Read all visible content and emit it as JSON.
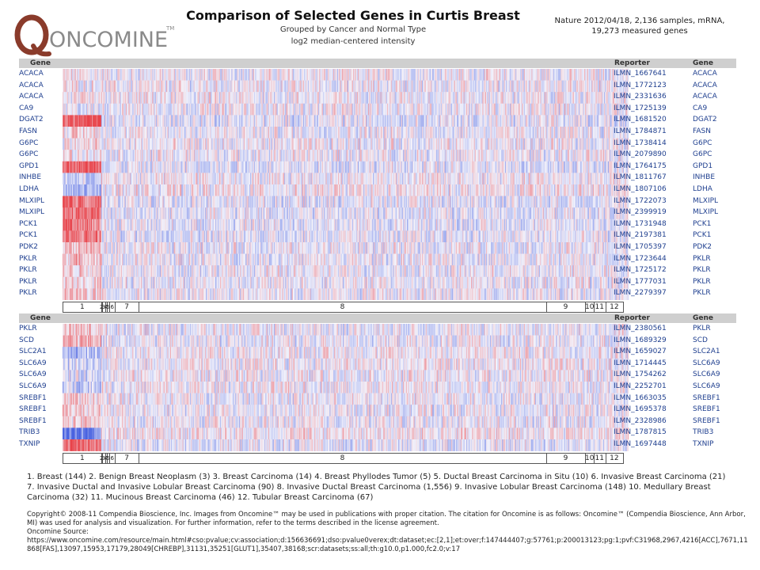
{
  "logo": {
    "brand": "ONCOMINE",
    "trademark": "TM"
  },
  "header": {
    "title": "Comparison of Selected Genes in Curtis Breast",
    "subtitle1": "Grouped by Cancer and Normal Type",
    "subtitle2": "log2 median-centered intensity",
    "source_line1": "Nature 2012/04/18,  2,136  samples, mRNA,",
    "source_line2": "19,273  measured genes"
  },
  "colors": {
    "high": "#e8434a",
    "low": "#4a63e0",
    "mid": "#f2f2fb",
    "header_bg": "#cfcfcf",
    "label": "#1f3f8f"
  },
  "chart_data": {
    "type": "heatmap",
    "column_headers": {
      "gene": "Gene",
      "reporter": "Reporter"
    },
    "groups": [
      {
        "id": "1",
        "name": "Breast",
        "n": 144
      },
      {
        "id": "2",
        "name": "Benign Breast Neoplasm",
        "n": 3
      },
      {
        "id": "3",
        "name": "Breast Carcinoma",
        "n": 14
      },
      {
        "id": "4",
        "name": "Breast Phyllodes Tumor",
        "n": 5
      },
      {
        "id": "5",
        "name": "Ductal Breast Carcinoma in Situ",
        "n": 10
      },
      {
        "id": "6",
        "name": "Invasive Breast Carcinoma",
        "n": 21
      },
      {
        "id": "7",
        "name": "Invasive Ductal and Invasive Lobular Breast Carcinoma",
        "n": 90
      },
      {
        "id": "8",
        "name": "Invasive Ductal Breast Carcinoma",
        "n": 1556
      },
      {
        "id": "9",
        "name": "Invasive Lobular Breast Carcinoma",
        "n": 148
      },
      {
        "id": "10",
        "name": "Medullary Breast Carcinoma",
        "n": 32
      },
      {
        "id": "11",
        "name": "Mucinous Breast Carcinoma",
        "n": 46
      },
      {
        "id": "12",
        "name": "Tubular Breast Carcinoma",
        "n": 67
      }
    ],
    "group_bar_labels": [
      "1",
      "2",
      "3",
      "4",
      "5",
      "6",
      "7",
      "8",
      "9",
      "10",
      "11",
      "12"
    ],
    "panels": [
      {
        "rows": [
          {
            "gene": "ACACA",
            "reporter": "ILMN_1667641",
            "normal_bias": 0.05
          },
          {
            "gene": "ACACA",
            "reporter": "ILMN_1772123",
            "normal_bias": 0.05
          },
          {
            "gene": "ACACA",
            "reporter": "ILMN_2331636",
            "normal_bias": 0.0
          },
          {
            "gene": "CA9",
            "reporter": "ILMN_1725139",
            "normal_bias": -0.1
          },
          {
            "gene": "DGAT2",
            "reporter": "ILMN_1681520",
            "normal_bias": 0.85
          },
          {
            "gene": "FASN",
            "reporter": "ILMN_1784871",
            "normal_bias": 0.15
          },
          {
            "gene": "G6PC",
            "reporter": "ILMN_1738414",
            "normal_bias": 0.1
          },
          {
            "gene": "G6PC",
            "reporter": "ILMN_2079890",
            "normal_bias": 0.1
          },
          {
            "gene": "GPD1",
            "reporter": "ILMN_1764175",
            "normal_bias": 0.9
          },
          {
            "gene": "INHBE",
            "reporter": "ILMN_1811767",
            "normal_bias": -0.25
          },
          {
            "gene": "LDHA",
            "reporter": "ILMN_1807106",
            "normal_bias": -0.45
          },
          {
            "gene": "MLXIPL",
            "reporter": "ILMN_1722073",
            "normal_bias": 0.75
          },
          {
            "gene": "MLXIPL",
            "reporter": "ILMN_2399919",
            "normal_bias": 0.75
          },
          {
            "gene": "PCK1",
            "reporter": "ILMN_1731948",
            "normal_bias": 0.7
          },
          {
            "gene": "PCK1",
            "reporter": "ILMN_2197381",
            "normal_bias": 0.65
          },
          {
            "gene": "PDK2",
            "reporter": "ILMN_1705397",
            "normal_bias": 0.3
          },
          {
            "gene": "PKLR",
            "reporter": "ILMN_1723644",
            "normal_bias": 0.3
          },
          {
            "gene": "PKLR",
            "reporter": "ILMN_1725172",
            "normal_bias": 0.2
          },
          {
            "gene": "PKLR",
            "reporter": "ILMN_1777031",
            "normal_bias": 0.2
          },
          {
            "gene": "PKLR",
            "reporter": "ILMN_2279397",
            "normal_bias": 0.25
          }
        ]
      },
      {
        "rows": [
          {
            "gene": "PKLR",
            "reporter": "ILMN_2380561",
            "normal_bias": 0.25
          },
          {
            "gene": "SCD",
            "reporter": "ILMN_1689329",
            "normal_bias": 0.35
          },
          {
            "gene": "SLC2A1",
            "reporter": "ILMN_1659027",
            "normal_bias": -0.4
          },
          {
            "gene": "SLC6A9",
            "reporter": "ILMN_1714445",
            "normal_bias": -0.2
          },
          {
            "gene": "SLC6A9",
            "reporter": "ILMN_1754262",
            "normal_bias": -0.15
          },
          {
            "gene": "SLC6A9",
            "reporter": "ILMN_2252701",
            "normal_bias": -0.2
          },
          {
            "gene": "SREBF1",
            "reporter": "ILMN_1663035",
            "normal_bias": 0.2
          },
          {
            "gene": "SREBF1",
            "reporter": "ILMN_1695378",
            "normal_bias": 0.25
          },
          {
            "gene": "SREBF1",
            "reporter": "ILMN_2328986",
            "normal_bias": 0.2
          },
          {
            "gene": "TRIB3",
            "reporter": "ILMN_1787815",
            "normal_bias": -0.85
          },
          {
            "gene": "TXNIP",
            "reporter": "ILMN_1697448",
            "normal_bias": 0.8
          }
        ]
      }
    ]
  },
  "legend_text": "1. Breast (144)   2. Benign Breast Neoplasm (3)   3. Breast Carcinoma (14)   4. Breast Phyllodes Tumor (5)   5. Ductal Breast Carcinoma in Situ (10)   6. Invasive Breast Carcinoma (21)   7. Invasive Ductal and Invasive Lobular Breast Carcinoma (90)   8. Invasive Ductal Breast Carcinoma (1,556)   9. Invasive Lobular Breast Carcinoma (148)   10. Medullary Breast Carcinoma (32)   11. Mucinous Breast Carcinoma (46)   12. Tubular Breast Carcinoma (67)",
  "copyright": {
    "line1": "Copyright© 2008-11 Compendia Bioscience, Inc. Images from Oncomine™ may be used in publications with proper citation. The citation for Oncomine is as follows: Oncomine™ (Compendia Bioscience, Ann Arbor, MI) was used for analysis and visualization. For further information, refer to the terms described in the license agreement.",
    "line2": "Oncomine Source:",
    "line3": "https://www.oncomine.com/resource/main.html#cso:pvalue;cv:association;d:156636691;dso:pvalue0verex;dt:dataset;ec:[2,1];et:over;f:147444407;g:57761;p:200013123;pg:1;pvf:C31968,2967,4216[ACC],7671,11868[FAS],13097,15953,17179,28049[CHREBP],31131,35251[GLUT1],35407,38168;scr:datasets;ss:all;th:g10.0,p1.000,fc2.0;v:17"
  }
}
